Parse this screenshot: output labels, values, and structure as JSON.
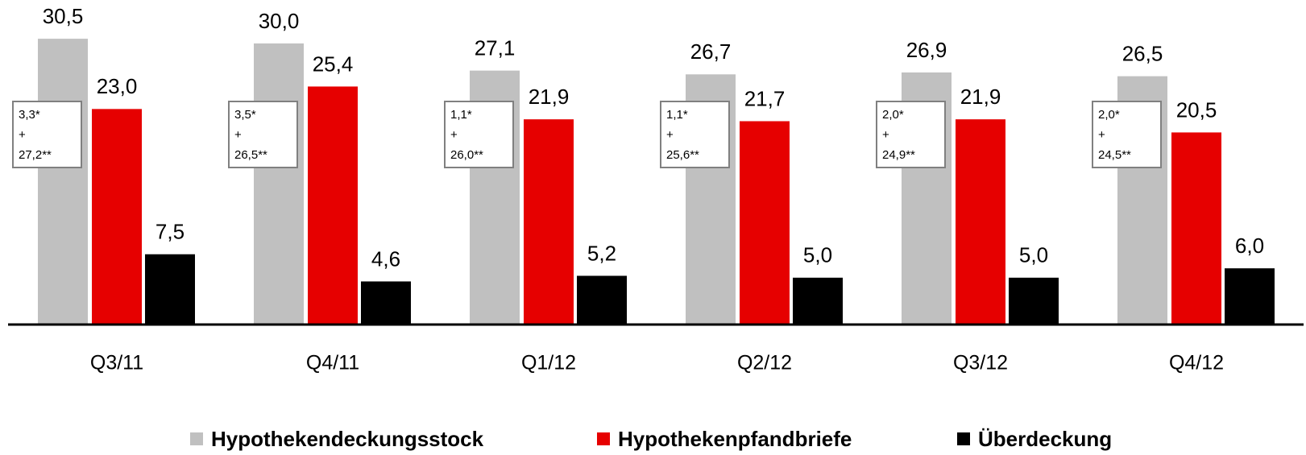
{
  "chart_data": {
    "type": "bar",
    "categories": [
      "Q3/11",
      "Q4/11",
      "Q1/12",
      "Q2/12",
      "Q3/12",
      "Q4/12"
    ],
    "series": [
      {
        "name": "Hypothekendeckungsstock",
        "color": "#c0c0c0",
        "values": [
          30.5,
          30.0,
          27.1,
          26.7,
          26.9,
          26.5
        ],
        "value_labels": [
          "30,5",
          "30,0",
          "27,1",
          "26,7",
          "26,9",
          "26,5"
        ]
      },
      {
        "name": "Hypothekenpfandbriefe",
        "color": "#e60000",
        "values": [
          23.0,
          25.4,
          21.9,
          21.7,
          21.9,
          20.5
        ],
        "value_labels": [
          "23,0",
          "25,4",
          "21,9",
          "21,7",
          "21,9",
          "20,5"
        ]
      },
      {
        "name": "Überdeckung",
        "color": "#000000",
        "values": [
          7.5,
          4.6,
          5.2,
          5.0,
          5.0,
          6.0
        ],
        "value_labels": [
          "7,5",
          "4,6",
          "5,2",
          "5,0",
          "5,0",
          "6,0"
        ]
      }
    ],
    "annotations": [
      [
        "3,3*",
        "+",
        "27,2**"
      ],
      [
        "3,5*",
        "+",
        "26,5**"
      ],
      [
        "1,1*",
        "+",
        "26,0**"
      ],
      [
        "1,1*",
        "+",
        "25,6**"
      ],
      [
        "2,0*",
        "+",
        "24,9**"
      ],
      [
        "2,0*",
        "+",
        "24,5**"
      ]
    ],
    "ylim": [
      0,
      33
    ],
    "legend": "bottom"
  }
}
